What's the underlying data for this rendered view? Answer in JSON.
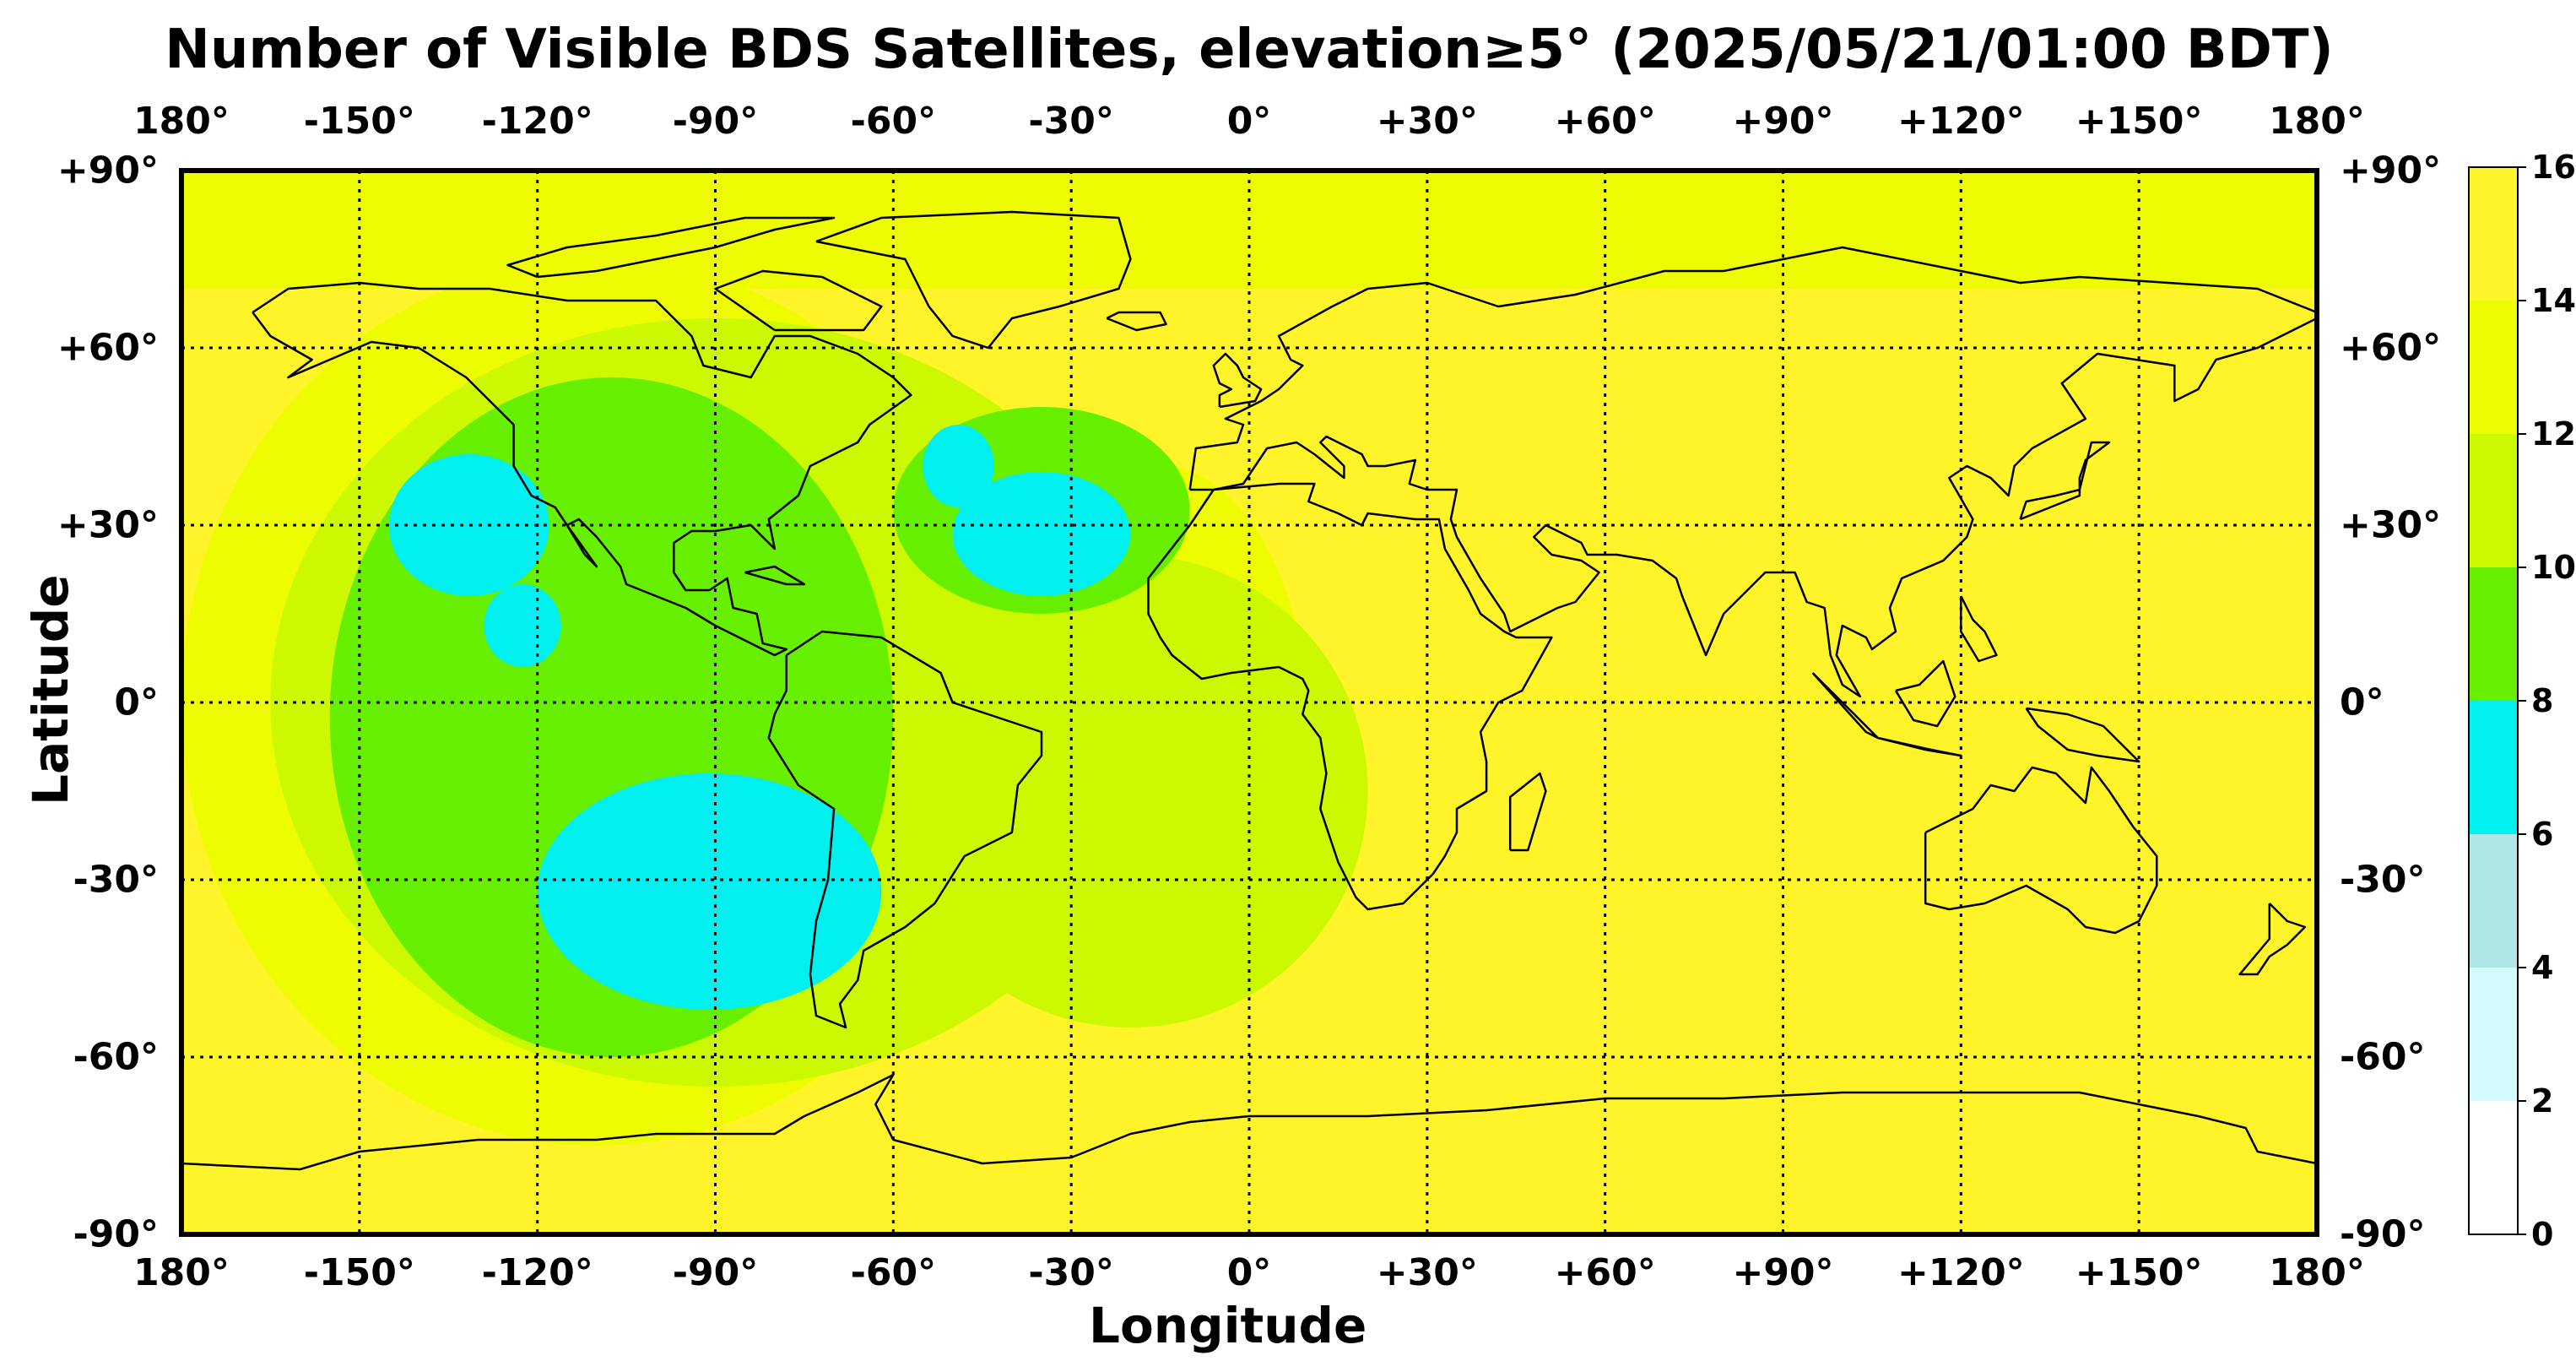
{
  "title": "Number of Visible BDS Satellites, elevation≥5° (2025/05/21/01:00 BDT)",
  "chart_data": {
    "type": "heatmap",
    "title": "Number of Visible BDS Satellites, elevation≥5° (2025/05/21/01:00 BDT)",
    "xlabel": "Longitude",
    "ylabel": "Latitude",
    "xlim": [
      -180,
      180
    ],
    "ylim": [
      -90,
      90
    ],
    "grid": true,
    "x_ticks": [
      "180°",
      "-150°",
      "-120°",
      "-90°",
      "-60°",
      "-30°",
      "0°",
      "+30°",
      "+60°",
      "+90°",
      "+120°",
      "+150°",
      "180°"
    ],
    "x_tick_values": [
      -180,
      -150,
      -120,
      -90,
      -60,
      -30,
      0,
      30,
      60,
      90,
      120,
      150,
      180
    ],
    "y_ticks": [
      "+90°",
      "+60°",
      "+30°",
      "0°",
      "-30°",
      "-60°",
      "-90°"
    ],
    "y_tick_values": [
      90,
      60,
      30,
      0,
      -30,
      -60,
      -90
    ],
    "colorbar": {
      "min": 0,
      "max": 16,
      "ticks": [
        "0",
        "2",
        "4",
        "6",
        "8",
        "10",
        "12",
        "14",
        "16"
      ],
      "bins": [
        {
          "range": [
            0,
            2
          ],
          "color": "#ffffff"
        },
        {
          "range": [
            2,
            4
          ],
          "color": "#d4fbfb"
        },
        {
          "range": [
            4,
            6
          ],
          "color": "#b0e6e6"
        },
        {
          "range": [
            6,
            8
          ],
          "color": "#00f0f0"
        },
        {
          "range": [
            8,
            10
          ],
          "color": "#66f000"
        },
        {
          "range": [
            10,
            12
          ],
          "color": "#ccf800"
        },
        {
          "range": [
            12,
            14
          ],
          "color": "#eefc00"
        },
        {
          "range": [
            14,
            16
          ],
          "color": "#fff32a"
        }
      ]
    },
    "background_value": 15,
    "regions": [
      {
        "value": 13,
        "lon": [
          -180,
          180
        ],
        "lat": [
          70,
          90
        ],
        "shape": "rect"
      },
      {
        "value": 13,
        "lon": [
          -180,
          -40
        ],
        "lat": [
          -75,
          75
        ],
        "shape": "ellipse"
      },
      {
        "value": 13,
        "lon": [
          -40,
          10
        ],
        "lat": [
          -50,
          40
        ],
        "shape": "ellipse"
      },
      {
        "value": 11,
        "lon": [
          -165,
          -15
        ],
        "lat": [
          -65,
          65
        ],
        "shape": "ellipse"
      },
      {
        "value": 11,
        "lon": [
          -60,
          20
        ],
        "lat": [
          -55,
          25
        ],
        "shape": "ellipse"
      },
      {
        "value": 9,
        "lon": [
          -155,
          -60
        ],
        "lat": [
          -60,
          55
        ],
        "shape": "ellipse"
      },
      {
        "value": 9,
        "lon": [
          -60,
          -10
        ],
        "lat": [
          15,
          50
        ],
        "shape": "ellipse"
      },
      {
        "value": 7,
        "lon": [
          -145,
          -118
        ],
        "lat": [
          18,
          42
        ],
        "shape": "ellipse"
      },
      {
        "value": 7,
        "lon": [
          -129,
          -116
        ],
        "lat": [
          6,
          20
        ],
        "shape": "ellipse"
      },
      {
        "value": 7,
        "lon": [
          -50,
          -20
        ],
        "lat": [
          18,
          39
        ],
        "shape": "ellipse"
      },
      {
        "value": 7,
        "lon": [
          -55,
          -43
        ],
        "lat": [
          33,
          47
        ],
        "shape": "ellipse"
      },
      {
        "value": 7,
        "lon": [
          -120,
          -62
        ],
        "lat": [
          -52,
          -12
        ],
        "shape": "ellipse"
      }
    ],
    "coastlines": true
  },
  "icons": {
    "map_basemap": "world-coastline",
    "colorbar": "colorbar"
  }
}
